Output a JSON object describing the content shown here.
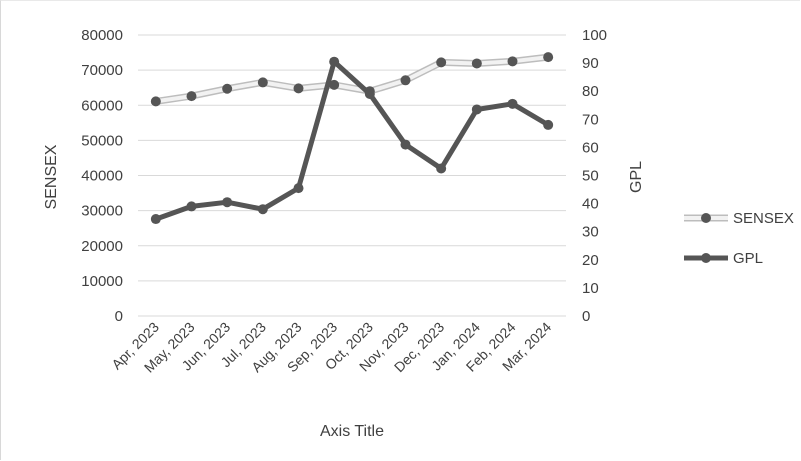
{
  "chart_data": {
    "type": "line",
    "title": "",
    "xlabel": "Axis Title",
    "ylabel": "SENSEX",
    "y2label": "GPL",
    "categories": [
      "Apr, 2023",
      "May, 2023",
      "Jun, 2023",
      "Jul, 2023",
      "Aug, 2023",
      "Sep, 2023",
      "Oct, 2023",
      "Nov, 2023",
      "Dec, 2023",
      "Jan, 2024",
      "Feb, 2024",
      "Mar, 2024"
    ],
    "ylim": [
      0,
      80000
    ],
    "yticks": [
      "80000",
      "70000",
      "60000",
      "50000",
      "40000",
      "30000",
      "20000",
      "10000",
      "0"
    ],
    "y2lim": [
      0,
      100
    ],
    "y2ticks": [
      "100",
      "90",
      "80",
      "70",
      "60",
      "50",
      "40",
      "30",
      "20",
      "10",
      "0"
    ],
    "grid": true,
    "legend_position": "right",
    "series": [
      {
        "name": "SENSEX",
        "axis": "left",
        "color": "#e0e0e0",
        "marker_color": "#555555",
        "values": [
          61100,
          62600,
          64700,
          66500,
          64800,
          65800,
          64000,
          67100,
          72200,
          71900,
          72500,
          73700
        ]
      },
      {
        "name": "GPL",
        "axis": "right",
        "color": "#555555",
        "marker_color": "#555555",
        "values": [
          34.5,
          39,
          40.5,
          38,
          45.5,
          90.5,
          79,
          61,
          52.5,
          73.5,
          75.5,
          68
        ]
      }
    ]
  }
}
